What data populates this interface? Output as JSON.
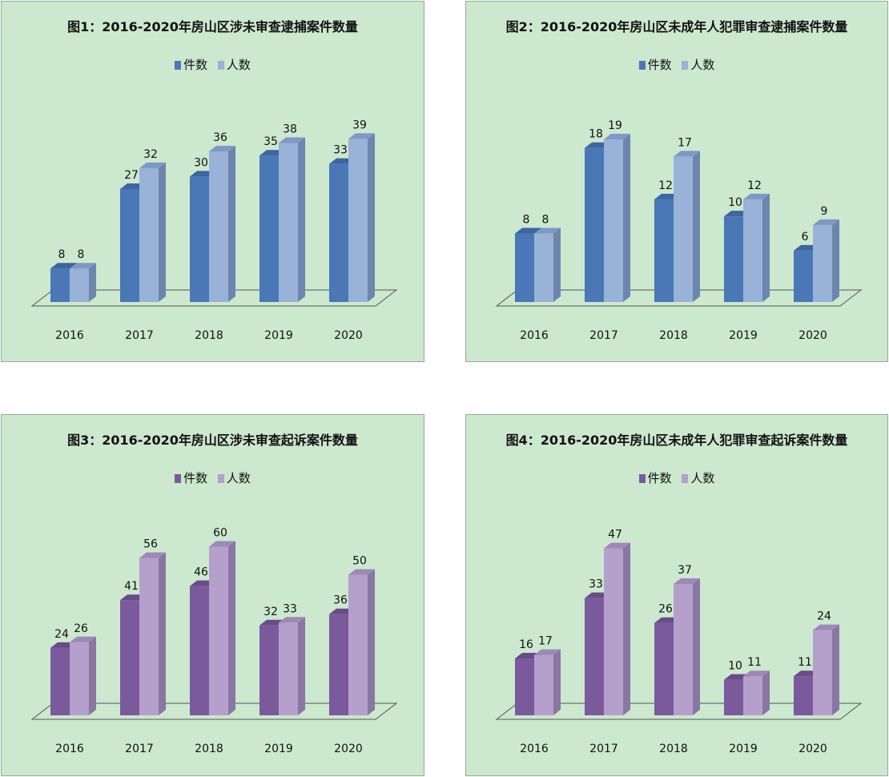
{
  "chart_data": [
    {
      "type": "bar",
      "title": "图1：2016-2020年房山区涉未审查逮捕案件数量",
      "categories": [
        "2016",
        "2017",
        "2018",
        "2019",
        "2020"
      ],
      "series": [
        {
          "name": "件数",
          "values": [
            8,
            27,
            30,
            35,
            33
          ]
        },
        {
          "name": "人数",
          "values": [
            8,
            32,
            36,
            38,
            39
          ]
        }
      ],
      "ylim": [
        0,
        45
      ],
      "colors": {
        "front": [
          "#4a77b6",
          "#98b2d8"
        ],
        "side": [
          "#2d5287",
          "#6d86ad"
        ],
        "top": [
          "#3d659f",
          "#7f99c5"
        ]
      }
    },
    {
      "type": "bar",
      "title": "图2：2016-2020年房山区未成年人犯罪审查逮捕案件数量",
      "categories": [
        "2016",
        "2017",
        "2018",
        "2019",
        "2020"
      ],
      "series": [
        {
          "name": "件数",
          "values": [
            8,
            18,
            12,
            10,
            6
          ]
        },
        {
          "name": "人数",
          "values": [
            8,
            19,
            17,
            12,
            9
          ]
        }
      ],
      "ylim": [
        0,
        22
      ],
      "colors": {
        "front": [
          "#4a77b6",
          "#98b2d8"
        ],
        "side": [
          "#2d5287",
          "#6d86ad"
        ],
        "top": [
          "#3d659f",
          "#7f99c5"
        ]
      }
    },
    {
      "type": "bar",
      "title": "图3：2016-2020年房山区涉未审查起诉案件数量",
      "categories": [
        "2016",
        "2017",
        "2018",
        "2019",
        "2020"
      ],
      "series": [
        {
          "name": "件数",
          "values": [
            24,
            41,
            46,
            32,
            36
          ]
        },
        {
          "name": "人数",
          "values": [
            26,
            56,
            60,
            33,
            50
          ]
        }
      ],
      "ylim": [
        0,
        67
      ],
      "colors": {
        "front": [
          "#7a5a9c",
          "#b4a0ca"
        ],
        "side": [
          "#553c70",
          "#8a76a3"
        ],
        "top": [
          "#684b88",
          "#9e88b8"
        ]
      }
    },
    {
      "type": "bar",
      "title": "图4：2016-2020年房山区未成年人犯罪审查起诉案件数量",
      "categories": [
        "2016",
        "2017",
        "2018",
        "2019",
        "2020"
      ],
      "series": [
        {
          "name": "件数",
          "values": [
            16,
            33,
            26,
            10,
            11
          ]
        },
        {
          "name": "人数",
          "values": [
            17,
            47,
            37,
            11,
            24
          ]
        }
      ],
      "ylim": [
        0,
        53
      ],
      "colors": {
        "front": [
          "#7a5a9c",
          "#b4a0ca"
        ],
        "side": [
          "#553c70",
          "#8a76a3"
        ],
        "top": [
          "#684b88",
          "#9e88b8"
        ]
      }
    }
  ]
}
